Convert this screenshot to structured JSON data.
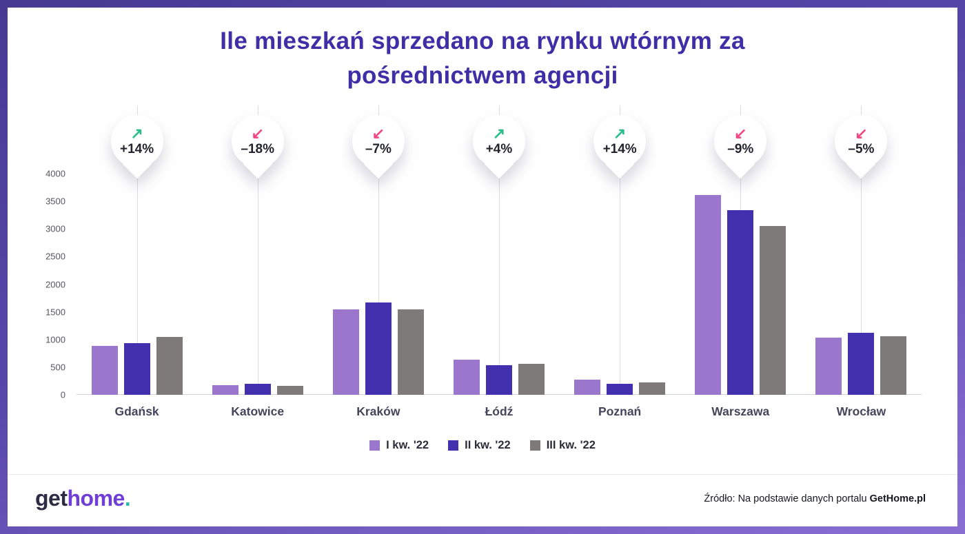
{
  "title": {
    "line1": "Ile mieszkań sprzedano na rynku wtórnym za",
    "line2": "pośrednictwem agencji"
  },
  "chart_data": {
    "type": "bar",
    "categories": [
      "Gdańsk",
      "Katowice",
      "Kraków",
      "Łódź",
      "Poznań",
      "Warszawa",
      "Wrocław"
    ],
    "series": [
      {
        "name": "I kw. '22",
        "color": "#9a77cd",
        "values": [
          880,
          180,
          1550,
          630,
          280,
          3620,
          1030
        ]
      },
      {
        "name": "II kw. '22",
        "color": "#4330ae",
        "values": [
          930,
          195,
          1670,
          540,
          200,
          3340,
          1120
        ]
      },
      {
        "name": "III kw. '22",
        "color": "#7e7a7a",
        "values": [
          1050,
          160,
          1550,
          560,
          230,
          3050,
          1060
        ]
      }
    ],
    "badges": [
      {
        "label": "+14%",
        "direction": "up"
      },
      {
        "label": "–18%",
        "direction": "down"
      },
      {
        "label": "–7%",
        "direction": "down"
      },
      {
        "label": "+4%",
        "direction": "up"
      },
      {
        "label": "+14%",
        "direction": "up"
      },
      {
        "label": "–9%",
        "direction": "down"
      },
      {
        "label": "–5%",
        "direction": "down"
      }
    ],
    "y_ticks": [
      4000,
      3500,
      3000,
      2500,
      2000,
      1500,
      1000,
      500,
      0
    ],
    "ylim": [
      0,
      4000
    ],
    "grid": "vertical",
    "legend_position": "bottom"
  },
  "icons": {
    "up": "↗",
    "down": "↙"
  },
  "colors": {
    "up": "#2dbd8c",
    "down": "#f0477f",
    "title": "#3f2fa6"
  },
  "footer": {
    "logo": {
      "part1": "get",
      "part2": "home",
      "dot": "."
    },
    "source_prefix": "Źródło: Na podstawie danych portalu ",
    "source_bold": "GetHome.pl"
  }
}
